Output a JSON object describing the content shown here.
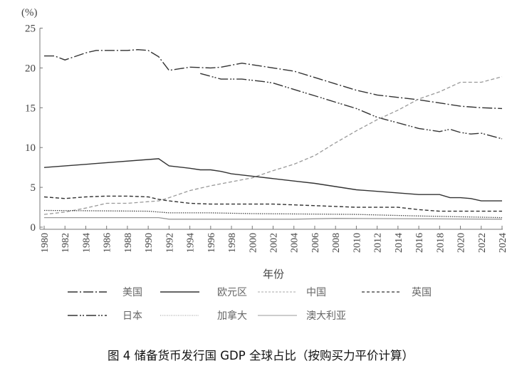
{
  "chart_data": {
    "type": "line",
    "title": "图 4 储备货币发行国 GDP 全球占比（按购买力平价计算）",
    "xlabel": "年份",
    "ylabel": "(%)",
    "xlim": [
      1980,
      2024
    ],
    "ylim": [
      0,
      25
    ],
    "yticks": [
      "0",
      "5",
      "10",
      "15",
      "20",
      "25"
    ],
    "xticks": [
      "1980",
      "1982",
      "1984",
      "1986",
      "1988",
      "1990",
      "1992",
      "1994",
      "1996",
      "1998",
      "2000",
      "2002",
      "2004",
      "2006",
      "2008",
      "2010",
      "2012",
      "2014",
      "2016",
      "2018",
      "2020",
      "2022",
      "2024"
    ],
    "grid": false,
    "legend_position": "bottom",
    "series": [
      {
        "name": "美国",
        "x": [
          1980,
          1981,
          1982,
          1984,
          1985,
          1986,
          1988,
          1989,
          1990,
          1991,
          1992,
          1994,
          1996,
          1997,
          1999,
          2000,
          2002,
          2004,
          2006,
          2008,
          2010,
          2012,
          2014,
          2016,
          2018,
          2020,
          2022,
          2024
        ],
        "y": [
          21.5,
          21.5,
          21.0,
          21.9,
          22.2,
          22.2,
          22.2,
          22.3,
          22.2,
          21.4,
          19.7,
          20.1,
          20.0,
          20.1,
          20.6,
          20.4,
          20.0,
          19.6,
          18.8,
          18.0,
          17.2,
          16.6,
          16.3,
          16.0,
          15.6,
          15.2,
          15.0,
          14.9
        ]
      },
      {
        "name": "欧元区",
        "x": [
          1995,
          1997,
          1999,
          2001,
          2002,
          2004,
          2006,
          2008,
          2010,
          2012,
          2014,
          2016,
          2018,
          2019,
          2020,
          2021,
          2022,
          2024
        ],
        "y": [
          19.3,
          18.6,
          18.6,
          18.3,
          18.1,
          17.3,
          16.5,
          15.7,
          14.9,
          13.8,
          13.1,
          12.4,
          12.0,
          12.3,
          11.9,
          11.7,
          11.8,
          11.1
        ]
      },
      {
        "name": "中国",
        "x": [
          1980,
          1982,
          1984,
          1986,
          1988,
          1990,
          1991,
          1992,
          1994,
          1996,
          1998,
          2000,
          2002,
          2004,
          2006,
          2008,
          2010,
          2012,
          2014,
          2016,
          2018,
          2020,
          2022,
          2024
        ],
        "y": [
          1.6,
          1.9,
          2.4,
          3.0,
          3.0,
          3.2,
          3.3,
          3.7,
          4.6,
          5.2,
          5.7,
          6.2,
          7.1,
          7.9,
          9.0,
          10.6,
          12.1,
          13.5,
          14.7,
          16.1,
          17.0,
          18.2,
          18.2,
          18.9
        ]
      },
      {
        "name": "英国",
        "x": [
          1980,
          1982,
          1984,
          1986,
          1988,
          1990,
          1991,
          1992,
          1994,
          1996,
          2000,
          2002,
          2004,
          2006,
          2008,
          2010,
          2012,
          2014,
          2016,
          2018,
          2024
        ],
        "y": [
          3.8,
          3.6,
          3.8,
          3.9,
          3.9,
          3.8,
          3.5,
          3.3,
          3.0,
          2.9,
          2.9,
          2.9,
          2.8,
          2.7,
          2.6,
          2.5,
          2.5,
          2.5,
          2.2,
          2.0,
          2.0
        ]
      },
      {
        "name": "日本",
        "x": [
          1980,
          1991,
          1992,
          1994,
          1995,
          1996,
          1997,
          1998,
          2000,
          2002,
          2004,
          2006,
          2008,
          2010,
          2012,
          2014,
          2016,
          2018,
          2019,
          2020,
          2021,
          2022,
          2024
        ],
        "y": [
          7.5,
          8.6,
          7.7,
          7.4,
          7.2,
          7.2,
          7.0,
          6.7,
          6.4,
          6.1,
          5.8,
          5.5,
          5.1,
          4.7,
          4.5,
          4.3,
          4.1,
          4.1,
          3.7,
          3.7,
          3.6,
          3.3,
          3.3
        ]
      },
      {
        "name": "加拿大",
        "x": [
          1980,
          1990,
          1992,
          1994,
          1996,
          2000,
          2010,
          2016,
          2024
        ],
        "y": [
          2.1,
          2.0,
          1.8,
          1.8,
          1.8,
          1.7,
          1.6,
          1.4,
          1.2
        ]
      },
      {
        "name": "澳大利亚",
        "x": [
          1980,
          1991,
          1992,
          2004,
          2008,
          2024
        ],
        "y": [
          1.2,
          1.2,
          1.0,
          1.0,
          1.1,
          1.0
        ]
      }
    ]
  }
}
